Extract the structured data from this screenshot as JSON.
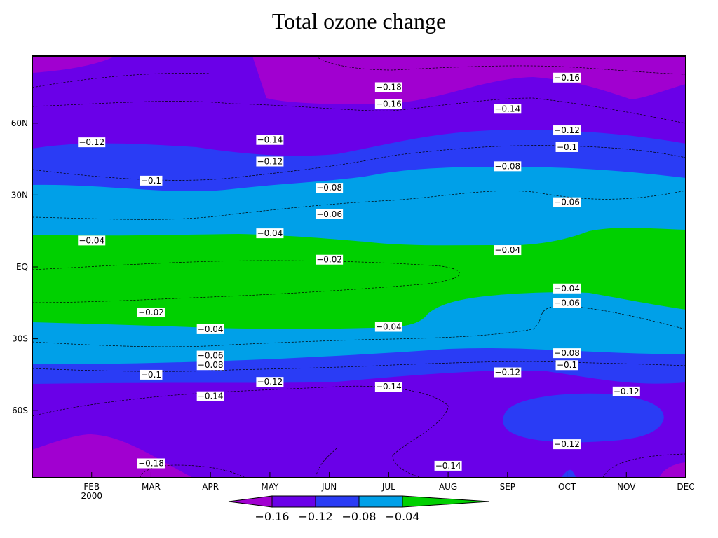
{
  "chart_data": {
    "type": "heatmap",
    "title": "Total ozone change",
    "xlabel": "",
    "ylabel": "",
    "x_ticks": [
      "FEB",
      "MAR",
      "APR",
      "MAY",
      "JUN",
      "JUL",
      "AUG",
      "SEP",
      "OCT",
      "NOV",
      "DEC"
    ],
    "x_year_label": "2000",
    "y_ticks": [
      "60N",
      "30N",
      "EQ",
      "30S",
      "60S"
    ],
    "y_tick_values": [
      60,
      30,
      0,
      -30,
      -60
    ],
    "ylim": [
      -88,
      88
    ],
    "colorbar": {
      "ticks": [
        "−0.16",
        "−0.12",
        "−0.08",
        "−0.04"
      ],
      "colors": [
        "#a100d0",
        "#6a00e8",
        "#2a3cf5",
        "#00a0e8",
        "#00d000"
      ]
    },
    "contour_labels": [
      {
        "text": "−0.18",
        "month": 6.0,
        "lat": 75
      },
      {
        "text": "−0.16",
        "month": 9.0,
        "lat": 79
      },
      {
        "text": "−0.16",
        "month": 6.0,
        "lat": 68
      },
      {
        "text": "−0.14",
        "month": 8.0,
        "lat": 66
      },
      {
        "text": "−0.12",
        "month": 1.0,
        "lat": 52
      },
      {
        "text": "−0.14",
        "month": 4.0,
        "lat": 53
      },
      {
        "text": "−0.12",
        "month": 9.0,
        "lat": 57
      },
      {
        "text": "−0.1",
        "month": 9.0,
        "lat": 50
      },
      {
        "text": "−0.12",
        "month": 4.0,
        "lat": 44
      },
      {
        "text": "−0.08",
        "month": 8.0,
        "lat": 42
      },
      {
        "text": "−0.1",
        "month": 2.0,
        "lat": 36
      },
      {
        "text": "−0.08",
        "month": 5.0,
        "lat": 33
      },
      {
        "text": "−0.06",
        "month": 9.0,
        "lat": 27
      },
      {
        "text": "−0.06",
        "month": 5.0,
        "lat": 22
      },
      {
        "text": "−0.04",
        "month": 4.0,
        "lat": 14
      },
      {
        "text": "−0.04",
        "month": 1.0,
        "lat": 11
      },
      {
        "text": "−0.04",
        "month": 8.0,
        "lat": 7
      },
      {
        "text": "−0.02",
        "month": 5.0,
        "lat": 3
      },
      {
        "text": "−0.04",
        "month": 9.0,
        "lat": -9
      },
      {
        "text": "−0.06",
        "month": 9.0,
        "lat": -15
      },
      {
        "text": "−0.02",
        "month": 2.0,
        "lat": -19
      },
      {
        "text": "−0.04",
        "month": 3.0,
        "lat": -26
      },
      {
        "text": "−0.04",
        "month": 6.0,
        "lat": -25
      },
      {
        "text": "−0.06",
        "month": 3.0,
        "lat": -37
      },
      {
        "text": "−0.08",
        "month": 3.0,
        "lat": -41
      },
      {
        "text": "−0.08",
        "month": 9.0,
        "lat": -36
      },
      {
        "text": "−0.1",
        "month": 9.0,
        "lat": -41
      },
      {
        "text": "−0.1",
        "month": 2.0,
        "lat": -45
      },
      {
        "text": "−0.12",
        "month": 8.0,
        "lat": -44
      },
      {
        "text": "−0.12",
        "month": 4.0,
        "lat": -48
      },
      {
        "text": "−0.14",
        "month": 6.0,
        "lat": -50
      },
      {
        "text": "−0.12",
        "month": 10.0,
        "lat": -52
      },
      {
        "text": "−0.14",
        "month": 3.0,
        "lat": -54
      },
      {
        "text": "−0.12",
        "month": 9.0,
        "lat": -74
      },
      {
        "text": "−0.18",
        "month": 2.0,
        "lat": -82
      },
      {
        "text": "−0.14",
        "month": 7.0,
        "lat": -83
      }
    ],
    "grid": false,
    "legend": "bottom"
  }
}
